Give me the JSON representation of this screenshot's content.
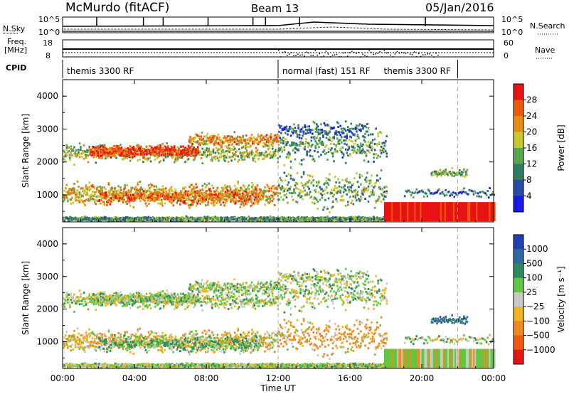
{
  "header": {
    "station": "McMurdo (fitACF)",
    "beam": "Beam 13",
    "date": "05/Jan/2016"
  },
  "top_panels": {
    "nsky_label": "N.Sky",
    "nsky_ticks": [
      "10^5",
      "10^0"
    ],
    "nsearch_label": "N.Search",
    "nsearch_ticks": [
      "10^5",
      "10^0"
    ],
    "freq_label_1": "Freq.",
    "freq_label_2": "[MHz]",
    "freq_ticks": [
      "18",
      "8"
    ],
    "nave_label": "Nave",
    "nave_ticks": [
      "60",
      "0"
    ],
    "cpid_label": "CPID",
    "cpid_segments": [
      {
        "name": "themis 3300 RF",
        "start": 0,
        "end": 12
      },
      {
        "name": "normal (fast) 151 RF",
        "start": 12,
        "end": 22
      },
      {
        "name": "themis 3300 RF",
        "start": 22,
        "end": 24
      }
    ]
  },
  "chart_data": [
    {
      "type": "heatmap",
      "quantity": "Power",
      "ylabel": "Slant Range [km]",
      "xlabel": "Time UT",
      "xlim": [
        0,
        24
      ],
      "ylim": [
        180,
        4500
      ],
      "yticks": [
        "1000",
        "2000",
        "3000",
        "4000"
      ],
      "colorbar_label": "Power [dB]",
      "colorbar_ticks": [
        "4",
        "8",
        "12",
        "16",
        "20",
        "24",
        "28"
      ],
      "colorbar_range": [
        0,
        32
      ],
      "colors": [
        "#1a1ae6",
        "#2a4aa8",
        "#2e7c62",
        "#5aa64e",
        "#c8c832",
        "#e68c14",
        "#ec5a0a",
        "#e61414"
      ]
    },
    {
      "type": "heatmap",
      "quantity": "Velocity",
      "ylabel": "Slant Range [km]",
      "xlabel": "Time UT",
      "xlim": [
        0,
        24
      ],
      "ylim": [
        180,
        4500
      ],
      "yticks": [
        "1000",
        "2000",
        "3000",
        "4000"
      ],
      "xticks": [
        "00:00",
        "04:00",
        "08:00",
        "12:00",
        "16:00",
        "20:00",
        "00:00"
      ],
      "colorbar_label": "Velocity [m s⁻¹]",
      "colorbar_ticks": [
        "1000",
        "500",
        "100",
        "25",
        "−25",
        "−100",
        "−500",
        "−1000"
      ],
      "colors": [
        "#2040b0",
        "#2e6aa0",
        "#2e8a60",
        "#60c840",
        "#c8c8c8",
        "#f0b424",
        "#f08a20",
        "#f05a10",
        "#e61414"
      ]
    }
  ]
}
